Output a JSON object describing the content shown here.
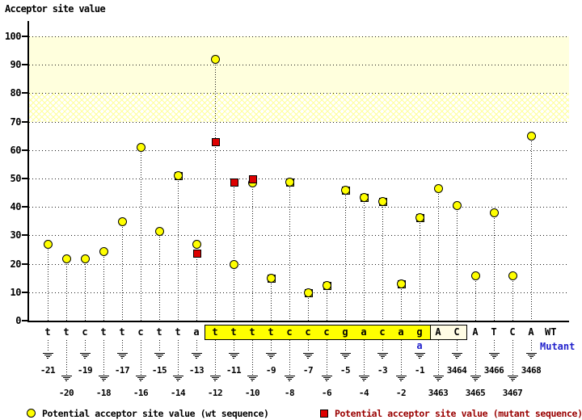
{
  "title": "Acceptor site value",
  "rows": {
    "wt": "WT",
    "mutant": "Mutant"
  },
  "y_axis": {
    "ticks": [
      0,
      10,
      20,
      30,
      40,
      50,
      60,
      70,
      80,
      90,
      100
    ]
  },
  "legend": {
    "wt": "Potential acceptor site value (wt sequence)",
    "mutant": "Potential acceptor site value (mutant sequence)"
  },
  "colors": {
    "wt_marker": "#ffff00",
    "mutant_marker": "#dd0000",
    "band_solid": "#ffffdd",
    "band_hatch": "#ffff99",
    "highlight_box": "#ffff00",
    "acceptor_box": "#fffce4",
    "mutant_text": "#2222cc",
    "mutant_legend_text": "#990000"
  },
  "chart_data": {
    "type": "scatter",
    "title": "Acceptor site value",
    "ylabel": "Acceptor site value",
    "ylim": [
      0,
      100
    ],
    "grid": "dotted-horizontal",
    "legend_position": "bottom",
    "highlight_bands": [
      {
        "from": 80,
        "to": 100,
        "style": "solid"
      },
      {
        "from": 70,
        "to": 80,
        "style": "hatch"
      }
    ],
    "mutation": {
      "position": "-1",
      "wt_base": "g",
      "mutant_base": "a"
    },
    "series_names": [
      "wt",
      "mutant"
    ],
    "positions": [
      {
        "label": "-21",
        "base": "t",
        "wt": 27,
        "mutant": null,
        "box": null
      },
      {
        "label": "-20",
        "base": "t",
        "wt": 22,
        "mutant": null,
        "box": null
      },
      {
        "label": "-19",
        "base": "c",
        "wt": 22,
        "mutant": null,
        "box": null
      },
      {
        "label": "-18",
        "base": "t",
        "wt": 24.5,
        "mutant": null,
        "box": null
      },
      {
        "label": "-17",
        "base": "t",
        "wt": 35,
        "mutant": null,
        "box": null
      },
      {
        "label": "-16",
        "base": "c",
        "wt": 61,
        "mutant": null,
        "box": null
      },
      {
        "label": "-15",
        "base": "t",
        "wt": 31.5,
        "mutant": null,
        "box": null
      },
      {
        "label": "-14",
        "base": "t",
        "wt": 51,
        "mutant": 51,
        "box": null
      },
      {
        "label": "-13",
        "base": "a",
        "wt": 27,
        "mutant": 24,
        "box": null
      },
      {
        "label": "-12",
        "base": "t",
        "wt": 92,
        "mutant": 63,
        "box": "yellow"
      },
      {
        "label": "-11",
        "base": "t",
        "wt": 20,
        "mutant": 49,
        "box": "yellow"
      },
      {
        "label": "-10",
        "base": "t",
        "wt": 48.5,
        "mutant": 50,
        "box": "yellow"
      },
      {
        "label": "-9",
        "base": "t",
        "wt": 15,
        "mutant": 15,
        "box": "yellow"
      },
      {
        "label": "-8",
        "base": "c",
        "wt": 49,
        "mutant": 49,
        "box": "yellow"
      },
      {
        "label": "-7",
        "base": "c",
        "wt": 10,
        "mutant": 10,
        "box": "yellow"
      },
      {
        "label": "-6",
        "base": "c",
        "wt": 12.5,
        "mutant": 12.5,
        "box": "yellow"
      },
      {
        "label": "-5",
        "base": "g",
        "wt": 46,
        "mutant": 46,
        "box": "yellow"
      },
      {
        "label": "-4",
        "base": "a",
        "wt": 43.5,
        "mutant": 43.5,
        "box": "yellow"
      },
      {
        "label": "-3",
        "base": "c",
        "wt": 42,
        "mutant": 42,
        "box": "yellow"
      },
      {
        "label": "-2",
        "base": "a",
        "wt": 13,
        "mutant": 13,
        "box": "yellow"
      },
      {
        "label": "-1",
        "base": "g",
        "wt": 36.5,
        "mutant": 36.5,
        "box": "yellow"
      },
      {
        "label": "3463",
        "base": "A",
        "wt": 46.5,
        "mutant": null,
        "box": "cream"
      },
      {
        "label": "3464",
        "base": "C",
        "wt": 40.5,
        "mutant": null,
        "box": "cream"
      },
      {
        "label": "3465",
        "base": "A",
        "wt": 16,
        "mutant": null,
        "box": null
      },
      {
        "label": "3466",
        "base": "T",
        "wt": 38,
        "mutant": null,
        "box": null
      },
      {
        "label": "3467",
        "base": "C",
        "wt": 16,
        "mutant": null,
        "box": null
      },
      {
        "label": "3468",
        "base": "A",
        "wt": 65,
        "mutant": null,
        "box": null
      }
    ]
  }
}
